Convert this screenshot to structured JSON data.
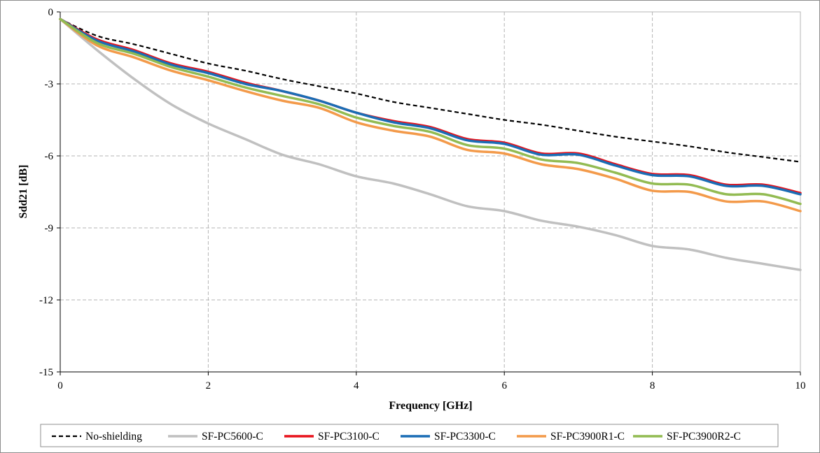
{
  "chart_data": {
    "type": "line",
    "title": "",
    "xlabel": "Frequency [GHz]",
    "ylabel": "Sdd21 [dB]",
    "xlim": [
      0,
      10
    ],
    "ylim": [
      -15,
      0
    ],
    "xticks": [
      "0",
      "2",
      "4",
      "6",
      "8",
      "10"
    ],
    "yticks": [
      "0",
      "-3",
      "-6",
      "-9",
      "-12",
      "-15"
    ],
    "grid": true,
    "legend_position": "bottom",
    "x": [
      0,
      0.5,
      1,
      1.5,
      2,
      2.5,
      3,
      3.5,
      4,
      4.5,
      5,
      5.5,
      6,
      6.5,
      7,
      7.5,
      8,
      8.5,
      9,
      9.5,
      10
    ],
    "series": [
      {
        "name": "No-shielding",
        "color": "#000000",
        "dash": "dashed",
        "values": [
          -0.3,
          -1.0,
          -1.35,
          -1.75,
          -2.15,
          -2.45,
          -2.8,
          -3.1,
          -3.4,
          -3.75,
          -4.0,
          -4.25,
          -4.5,
          -4.7,
          -4.95,
          -5.2,
          -5.4,
          -5.6,
          -5.85,
          -6.05,
          -6.25
        ]
      },
      {
        "name": "SF-PC5600-C",
        "color": "#c0c0c0",
        "dash": "solid",
        "values": [
          -0.3,
          -1.6,
          -2.8,
          -3.85,
          -4.65,
          -5.3,
          -5.95,
          -6.35,
          -6.85,
          -7.15,
          -7.6,
          -8.1,
          -8.3,
          -8.7,
          -8.95,
          -9.3,
          -9.75,
          -9.9,
          -10.25,
          -10.5,
          -10.75
        ]
      },
      {
        "name": "SF-PC3100-C",
        "color": "#e8121b",
        "dash": "solid",
        "values": [
          -0.3,
          -1.15,
          -1.6,
          -2.15,
          -2.5,
          -2.95,
          -3.3,
          -3.7,
          -4.2,
          -4.55,
          -4.8,
          -5.3,
          -5.45,
          -5.9,
          -5.9,
          -6.35,
          -6.75,
          -6.8,
          -7.2,
          -7.2,
          -7.55
        ]
      },
      {
        "name": "SF-PC3300-C",
        "color": "#1a6db5",
        "dash": "solid",
        "values": [
          -0.3,
          -1.2,
          -1.65,
          -2.2,
          -2.55,
          -3.0,
          -3.3,
          -3.7,
          -4.2,
          -4.6,
          -4.85,
          -5.35,
          -5.5,
          -5.95,
          -5.95,
          -6.4,
          -6.8,
          -6.85,
          -7.25,
          -7.25,
          -7.6
        ]
      },
      {
        "name": "SF-PC3900R1-C",
        "color": "#f39a4a",
        "dash": "solid",
        "values": [
          -0.3,
          -1.4,
          -1.9,
          -2.45,
          -2.85,
          -3.3,
          -3.7,
          -4.0,
          -4.6,
          -4.95,
          -5.2,
          -5.75,
          -5.9,
          -6.35,
          -6.55,
          -6.95,
          -7.45,
          -7.5,
          -7.9,
          -7.9,
          -8.3
        ]
      },
      {
        "name": "SF-PC3900R2-C",
        "color": "#92bb52",
        "dash": "solid",
        "values": [
          -0.3,
          -1.3,
          -1.75,
          -2.3,
          -2.7,
          -3.15,
          -3.5,
          -3.85,
          -4.4,
          -4.75,
          -5.0,
          -5.55,
          -5.7,
          -6.15,
          -6.3,
          -6.7,
          -7.15,
          -7.2,
          -7.6,
          -7.6,
          -8.0
        ]
      }
    ]
  }
}
